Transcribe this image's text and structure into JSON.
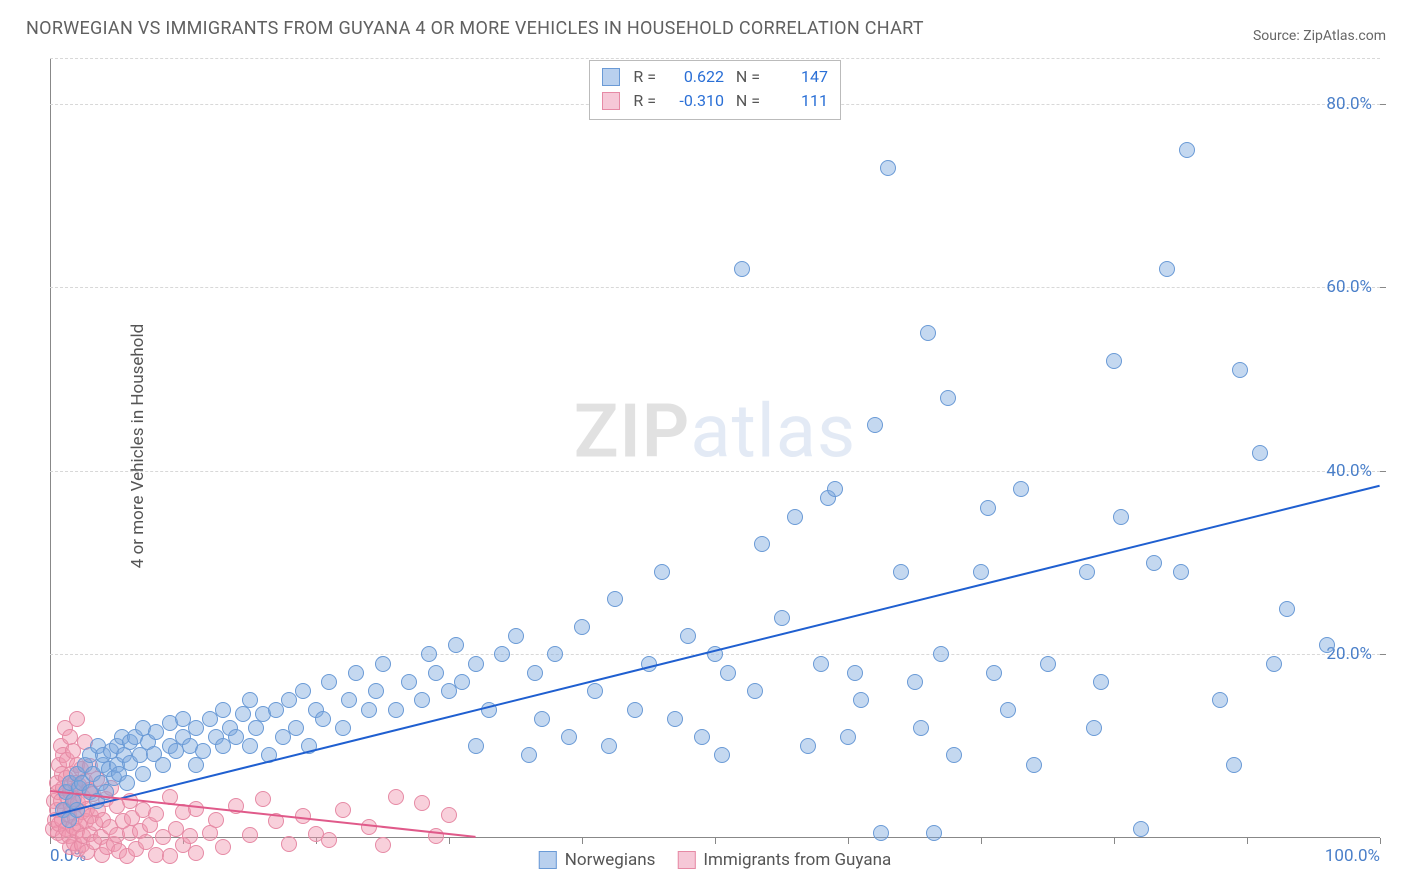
{
  "title": "NORWEGIAN VS IMMIGRANTS FROM GUYANA 4 OR MORE VEHICLES IN HOUSEHOLD CORRELATION CHART",
  "source": "Source: ZipAtlas.com",
  "ylabel": "4 or more Vehicles in Household",
  "watermark": {
    "zip": "ZIP",
    "atlas": "atlas"
  },
  "chart": {
    "type": "scatter",
    "background_color": "#ffffff",
    "grid_color": "#d8d8d8",
    "axis_color": "#888888",
    "xlim": [
      0,
      100
    ],
    "ylim": [
      0,
      85
    ],
    "ytick_step": 20,
    "ytick_labels": [
      "20.0%",
      "40.0%",
      "60.0%",
      "80.0%"
    ],
    "xtick_positions": [
      0,
      10,
      20,
      30,
      40,
      50,
      60,
      70,
      80,
      90,
      100
    ],
    "xaxis_end_labels": {
      "left": "0.0%",
      "right": "100.0%"
    },
    "marker_radius": 8,
    "marker_border_width": 1,
    "series": [
      {
        "name": "Norwegians",
        "fill": "rgba(124,169,222,0.45)",
        "stroke": "#6a9ad6",
        "swatch_fill": "#b9d0ee",
        "swatch_stroke": "#6a9ad6",
        "R": "0.622",
        "N": "147",
        "regression": {
          "x1": 0,
          "y1": 2.5,
          "x2": 100,
          "y2": 38.5,
          "color": "#1f5fd0",
          "width": 2
        },
        "points": [
          [
            1,
            3
          ],
          [
            1.2,
            5
          ],
          [
            1.4,
            2
          ],
          [
            1.5,
            6
          ],
          [
            1.7,
            4
          ],
          [
            2,
            7
          ],
          [
            2,
            3
          ],
          [
            2.2,
            5.5
          ],
          [
            2.4,
            6
          ],
          [
            2.6,
            8
          ],
          [
            3,
            5
          ],
          [
            3,
            9
          ],
          [
            3.2,
            7
          ],
          [
            3.5,
            4
          ],
          [
            3.6,
            10
          ],
          [
            3.8,
            6
          ],
          [
            4,
            8
          ],
          [
            4,
            9
          ],
          [
            4.2,
            5
          ],
          [
            4.4,
            7.5
          ],
          [
            4.6,
            9.5
          ],
          [
            4.8,
            6.5
          ],
          [
            5,
            10
          ],
          [
            5,
            8
          ],
          [
            5.2,
            7
          ],
          [
            5.4,
            11
          ],
          [
            5.6,
            9
          ],
          [
            5.8,
            6
          ],
          [
            6,
            10.5
          ],
          [
            6,
            8.2
          ],
          [
            6.4,
            11
          ],
          [
            6.8,
            9
          ],
          [
            7,
            12
          ],
          [
            7,
            7
          ],
          [
            7.4,
            10.5
          ],
          [
            7.8,
            9.2
          ],
          [
            8,
            11.5
          ],
          [
            8.5,
            8
          ],
          [
            9,
            10
          ],
          [
            9,
            12.5
          ],
          [
            9.5,
            9.5
          ],
          [
            10,
            11
          ],
          [
            10,
            13
          ],
          [
            10.5,
            10
          ],
          [
            11,
            12
          ],
          [
            11,
            8
          ],
          [
            11.5,
            9.5
          ],
          [
            12,
            13
          ],
          [
            12.5,
            11
          ],
          [
            13,
            10
          ],
          [
            13,
            14
          ],
          [
            13.5,
            12
          ],
          [
            14,
            11
          ],
          [
            14.5,
            13.5
          ],
          [
            15,
            10
          ],
          [
            15,
            15
          ],
          [
            15.5,
            12
          ],
          [
            16,
            13.5
          ],
          [
            16.5,
            9
          ],
          [
            17,
            14
          ],
          [
            17.5,
            11
          ],
          [
            18,
            15
          ],
          [
            18.5,
            12
          ],
          [
            19,
            16
          ],
          [
            19.5,
            10
          ],
          [
            20,
            14
          ],
          [
            20.5,
            13
          ],
          [
            21,
            17
          ],
          [
            22,
            12
          ],
          [
            22.5,
            15
          ],
          [
            23,
            18
          ],
          [
            24,
            14
          ],
          [
            24.5,
            16
          ],
          [
            25,
            19
          ],
          [
            26,
            14
          ],
          [
            27,
            17
          ],
          [
            28,
            15
          ],
          [
            28.5,
            20
          ],
          [
            29,
            18
          ],
          [
            30,
            16
          ],
          [
            30.5,
            21
          ],
          [
            31,
            17
          ],
          [
            32,
            10
          ],
          [
            32,
            19
          ],
          [
            33,
            14
          ],
          [
            34,
            20
          ],
          [
            35,
            22
          ],
          [
            36,
            9
          ],
          [
            36.5,
            18
          ],
          [
            37,
            13
          ],
          [
            38,
            20
          ],
          [
            39,
            11
          ],
          [
            40,
            23
          ],
          [
            41,
            16
          ],
          [
            42,
            10
          ],
          [
            42.5,
            26
          ],
          [
            44,
            14
          ],
          [
            45,
            19
          ],
          [
            46,
            29
          ],
          [
            47,
            13
          ],
          [
            48,
            22
          ],
          [
            49,
            11
          ],
          [
            50,
            20
          ],
          [
            50.5,
            9
          ],
          [
            51,
            18
          ],
          [
            52,
            62
          ],
          [
            53,
            16
          ],
          [
            53.5,
            32
          ],
          [
            55,
            24
          ],
          [
            56,
            35
          ],
          [
            57,
            10
          ],
          [
            58,
            19
          ],
          [
            58.5,
            37
          ],
          [
            59,
            38
          ],
          [
            60,
            11
          ],
          [
            60.5,
            18
          ],
          [
            61,
            15
          ],
          [
            62,
            45
          ],
          [
            63,
            73
          ],
          [
            64,
            29
          ],
          [
            65,
            17
          ],
          [
            65.5,
            12
          ],
          [
            66,
            55
          ],
          [
            67,
            20
          ],
          [
            67.5,
            48
          ],
          [
            68,
            9
          ],
          [
            70,
            29
          ],
          [
            70.5,
            36
          ],
          [
            71,
            18
          ],
          [
            72,
            14
          ],
          [
            73,
            38
          ],
          [
            74,
            8
          ],
          [
            75,
            19
          ],
          [
            78,
            29
          ],
          [
            78.5,
            12
          ],
          [
            79,
            17
          ],
          [
            80,
            52
          ],
          [
            80.5,
            35
          ],
          [
            82,
            1
          ],
          [
            83,
            30
          ],
          [
            84,
            62
          ],
          [
            85,
            29
          ],
          [
            85.5,
            75
          ],
          [
            88,
            15
          ],
          [
            89,
            8
          ],
          [
            89.5,
            51
          ],
          [
            91,
            42
          ],
          [
            92,
            19
          ],
          [
            93,
            25
          ],
          [
            96,
            21
          ],
          [
            62.5,
            0.5
          ],
          [
            66.5,
            0.5
          ]
        ]
      },
      {
        "name": "Immigrants from Guyana",
        "fill": "rgba(240,150,175,0.45)",
        "stroke": "#e68aa5",
        "swatch_fill": "#f6c8d7",
        "swatch_stroke": "#e68aa5",
        "R": "-0.310",
        "N": "111",
        "regression": {
          "x1": 0,
          "y1": 5.2,
          "x2": 32,
          "y2": 0.2,
          "color": "#e05a8a",
          "width": 2
        },
        "points": [
          [
            0.2,
            1
          ],
          [
            0.3,
            4
          ],
          [
            0.4,
            2
          ],
          [
            0.5,
            6
          ],
          [
            0.5,
            3
          ],
          [
            0.6,
            0.5
          ],
          [
            0.6,
            5
          ],
          [
            0.7,
            8
          ],
          [
            0.7,
            1.5
          ],
          [
            0.8,
            4
          ],
          [
            0.8,
            10
          ],
          [
            0.9,
            2
          ],
          [
            0.9,
            7
          ],
          [
            1,
            0.2
          ],
          [
            1,
            5.5
          ],
          [
            1,
            9
          ],
          [
            1.1,
            3
          ],
          [
            1.1,
            12
          ],
          [
            1.2,
            1
          ],
          [
            1.2,
            6.5
          ],
          [
            1.3,
            4.5
          ],
          [
            1.3,
            8.5
          ],
          [
            1.4,
            0.2
          ],
          [
            1.4,
            2.5
          ],
          [
            1.5,
            5
          ],
          [
            1.5,
            11
          ],
          [
            1.5,
            -1
          ],
          [
            1.6,
            7
          ],
          [
            1.6,
            3.5
          ],
          [
            1.7,
            1.2
          ],
          [
            1.7,
            9.5
          ],
          [
            1.8,
            4.2
          ],
          [
            1.8,
            -0.5
          ],
          [
            1.9,
            6
          ],
          [
            1.9,
            2.2
          ],
          [
            2,
            8
          ],
          [
            2,
            0.8
          ],
          [
            2,
            13
          ],
          [
            2.1,
            3.8
          ],
          [
            2.1,
            -1.2
          ],
          [
            2.2,
            5.8
          ],
          [
            2.2,
            1.5
          ],
          [
            2.3,
            7.5
          ],
          [
            2.4,
            2.8
          ],
          [
            2.4,
            -0.8
          ],
          [
            2.5,
            4.5
          ],
          [
            2.5,
            0.2
          ],
          [
            2.6,
            6.2
          ],
          [
            2.6,
            10.5
          ],
          [
            2.7,
            1.8
          ],
          [
            2.8,
            3.2
          ],
          [
            2.8,
            -1.5
          ],
          [
            2.9,
            5.2
          ],
          [
            3,
            0.4
          ],
          [
            3,
            7.8
          ],
          [
            3.1,
            2.4
          ],
          [
            3.2,
            4.8
          ],
          [
            3.3,
            -0.4
          ],
          [
            3.4,
            1.6
          ],
          [
            3.5,
            6.4
          ],
          [
            3.6,
            3
          ],
          [
            3.8,
            0.1
          ],
          [
            3.9,
            -1.8
          ],
          [
            4,
            2
          ],
          [
            4.2,
            4.2
          ],
          [
            4.3,
            -1
          ],
          [
            4.5,
            1.2
          ],
          [
            4.6,
            5.5
          ],
          [
            4.8,
            -0.6
          ],
          [
            5,
            0.3
          ],
          [
            5,
            3.5
          ],
          [
            5.2,
            -1.4
          ],
          [
            5.5,
            1.8
          ],
          [
            5.8,
            -2
          ],
          [
            6,
            0.5
          ],
          [
            6,
            4
          ],
          [
            6.2,
            2.2
          ],
          [
            6.5,
            -1.2
          ],
          [
            6.8,
            0.8
          ],
          [
            7,
            3
          ],
          [
            7.2,
            -0.4
          ],
          [
            7.5,
            1.4
          ],
          [
            8,
            -1.8
          ],
          [
            8,
            2.6
          ],
          [
            8.5,
            0.1
          ],
          [
            9,
            4.5
          ],
          [
            9,
            -2
          ],
          [
            9.5,
            1
          ],
          [
            10,
            -0.8
          ],
          [
            10,
            2.8
          ],
          [
            10.5,
            0.2
          ],
          [
            11,
            -1.6
          ],
          [
            11,
            3.2
          ],
          [
            12,
            0.6
          ],
          [
            12.5,
            2
          ],
          [
            13,
            -1
          ],
          [
            14,
            3.5
          ],
          [
            15,
            0.3
          ],
          [
            16,
            4.2
          ],
          [
            17,
            1.8
          ],
          [
            18,
            -0.6
          ],
          [
            19,
            2.4
          ],
          [
            20,
            0.4
          ],
          [
            21,
            -0.2
          ],
          [
            22,
            3
          ],
          [
            24,
            1.2
          ],
          [
            25,
            -0.8
          ],
          [
            26,
            4.5
          ],
          [
            28,
            3.8
          ],
          [
            29,
            0.2
          ],
          [
            30,
            2.5
          ]
        ]
      }
    ],
    "legend": {
      "label_color": "#555555",
      "value_color": "#2a6fd6"
    }
  }
}
